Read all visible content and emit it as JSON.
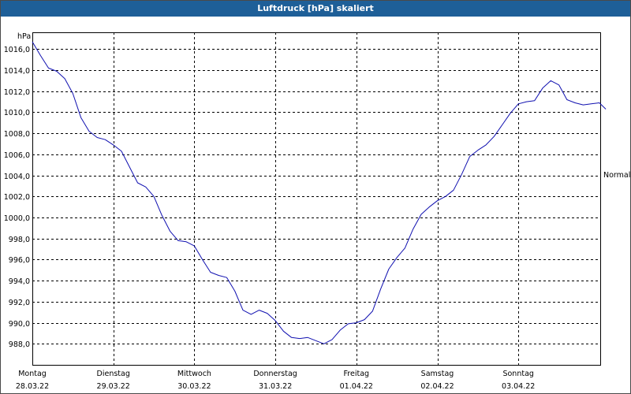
{
  "window": {
    "title": "Luftdruck [hPa] skaliert"
  },
  "chart_data": {
    "type": "line",
    "title": "Luftdruck [hPa] skaliert",
    "ylabel": "hPa",
    "xlabel": "",
    "ylim": [
      986.0,
      1017.6
    ],
    "y_ticks": [
      988.0,
      990.0,
      992.0,
      994.0,
      996.0,
      998.0,
      1000.0,
      1002.0,
      1004.0,
      1006.0,
      1008.0,
      1010.0,
      1012.0,
      1014.0,
      1016.0
    ],
    "y_tick_labels": [
      "988,0",
      "990,0",
      "992,0",
      "994,0",
      "996,0",
      "998,0",
      "1000,0",
      "1002,0",
      "1004,0",
      "1006,0",
      "1008,0",
      "1010,0",
      "1012,0",
      "1014,0",
      "1016,0"
    ],
    "x_days": [
      {
        "day": "Montag",
        "date": "28.03.22"
      },
      {
        "day": "Dienstag",
        "date": "29.03.22"
      },
      {
        "day": "Mittwoch",
        "date": "30.03.22"
      },
      {
        "day": "Donnerstag",
        "date": "31.03.22"
      },
      {
        "day": "Freitag",
        "date": "01.04.22"
      },
      {
        "day": "Samstag",
        "date": "02.04.22"
      },
      {
        "day": "Sonntag",
        "date": "03.04.22"
      }
    ],
    "xlim_days": [
      0,
      7.1
    ],
    "annotations": [
      {
        "text": "Normal",
        "position": "right"
      }
    ],
    "grid": true,
    "series": [
      {
        "color": "#1010b0",
        "x_days": [
          0.0,
          0.1,
          0.2,
          0.3,
          0.4,
          0.5,
          0.6,
          0.7,
          0.8,
          0.9,
          1.0,
          1.1,
          1.2,
          1.3,
          1.4,
          1.5,
          1.6,
          1.7,
          1.8,
          1.9,
          2.0,
          2.1,
          2.2,
          2.3,
          2.4,
          2.5,
          2.6,
          2.7,
          2.8,
          2.9,
          3.0,
          3.1,
          3.2,
          3.3,
          3.4,
          3.5,
          3.6,
          3.7,
          3.8,
          3.9,
          4.0,
          4.1,
          4.2,
          4.3,
          4.4,
          4.5,
          4.6,
          4.7,
          4.8,
          4.9,
          5.0,
          5.1,
          5.2,
          5.3,
          5.4,
          5.5,
          5.6,
          5.7,
          5.8,
          5.9,
          6.0,
          6.1,
          6.2,
          6.3,
          6.4,
          6.5,
          6.6,
          6.7,
          6.8,
          6.9,
          7.0,
          7.08
        ],
        "values": [
          1016.7,
          1015.4,
          1014.2,
          1013.9,
          1013.2,
          1011.8,
          1009.5,
          1008.2,
          1007.6,
          1007.4,
          1006.9,
          1006.3,
          1004.8,
          1003.3,
          1002.9,
          1002.0,
          1000.2,
          998.7,
          997.8,
          997.7,
          997.3,
          996.0,
          994.8,
          994.5,
          994.3,
          993.0,
          991.2,
          990.8,
          991.2,
          990.9,
          990.2,
          989.2,
          988.6,
          988.5,
          988.6,
          988.3,
          988.0,
          988.4,
          989.3,
          989.9,
          990.0,
          990.3,
          991.1,
          993.2,
          995.1,
          996.2,
          997.1,
          998.9,
          1000.3,
          1001.0,
          1001.6,
          1002.0,
          1002.6,
          1004.1,
          1005.8,
          1006.4,
          1006.9,
          1007.7,
          1008.8,
          1009.9,
          1010.8,
          1011.0,
          1011.1,
          1012.3,
          1013.0,
          1012.6,
          1011.2,
          1010.9,
          1010.7,
          1010.8,
          1010.9,
          1010.3
        ]
      }
    ]
  }
}
